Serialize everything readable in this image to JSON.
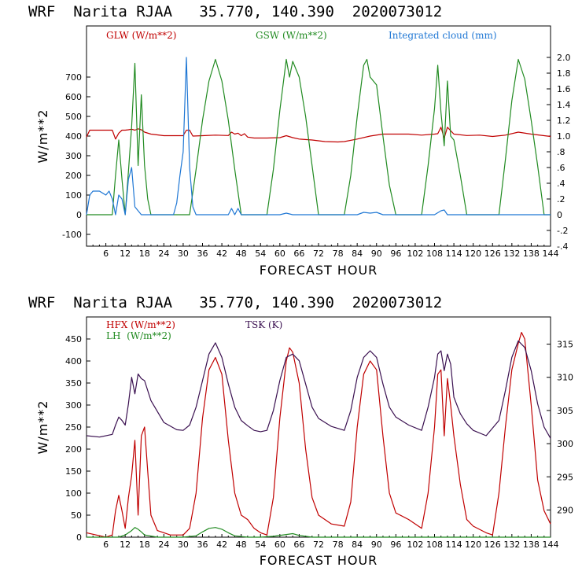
{
  "header_top": "WRF  Narita RJAA   35.770, 140.390  2020073012",
  "header_bottom": "WRF  Narita RJAA   35.770, 140.390  2020073012",
  "colors": {
    "red": "#c00000",
    "green": "#228b22",
    "blue": "#1f77d4",
    "purple": "#3a1050"
  },
  "chart_data": [
    {
      "type": "line",
      "title": "WRF  Narita RJAA   35.770, 140.390  2020073012",
      "xlabel": "FORECAST HOUR",
      "ylabel": "W/m**2",
      "ylabel_right": "",
      "xlim": [
        0,
        144
      ],
      "ylim": [
        -160,
        960
      ],
      "y2lim": [
        -0.4,
        2.4
      ],
      "x_ticks": [
        6,
        12,
        18,
        24,
        30,
        36,
        42,
        48,
        54,
        60,
        66,
        72,
        78,
        84,
        90,
        96,
        102,
        108,
        114,
        120,
        126,
        132,
        138,
        144
      ],
      "y_ticks": [
        -100,
        0,
        100,
        200,
        300,
        400,
        500,
        600,
        700
      ],
      "y2_ticks": [
        "-.4",
        "-.2",
        "0",
        ".2",
        ".4",
        ".6",
        ".8",
        "1.0",
        "1.2",
        "1.4",
        "1.6",
        "1.8",
        "2.0"
      ],
      "y2_tick_values": [
        -0.4,
        -0.2,
        0,
        0.2,
        0.4,
        0.6,
        0.8,
        1.0,
        1.2,
        1.4,
        1.6,
        1.8,
        2.0
      ],
      "legend": [
        "GLW (W/m**2)",
        "GSW (W/m**2)",
        "Integrated cloud (mm)"
      ],
      "series": [
        {
          "name": "GLW (W/m**2)",
          "axis": "left",
          "color": "#c00000",
          "x": [
            0,
            1,
            8,
            9,
            10,
            11,
            12,
            13,
            14,
            15,
            16,
            17,
            18,
            20,
            24,
            28,
            30,
            31,
            32,
            33,
            36,
            40,
            44,
            45,
            46,
            47,
            48,
            49,
            50,
            52,
            56,
            60,
            62,
            64,
            66,
            70,
            74,
            78,
            80,
            84,
            88,
            92,
            96,
            100,
            104,
            108,
            109,
            110,
            111,
            112,
            114,
            118,
            122,
            126,
            130,
            134,
            138,
            144
          ],
          "y": [
            395,
            430,
            430,
            385,
            415,
            430,
            430,
            432,
            435,
            430,
            437,
            432,
            420,
            410,
            402,
            402,
            402,
            430,
            430,
            400,
            402,
            405,
            403,
            420,
            410,
            415,
            402,
            412,
            395,
            390,
            390,
            392,
            402,
            392,
            385,
            380,
            372,
            370,
            372,
            385,
            400,
            410,
            410,
            410,
            405,
            410,
            412,
            445,
            390,
            445,
            410,
            403,
            405,
            398,
            405,
            420,
            410,
            398
          ]
        },
        {
          "name": "GSW (W/m**2)",
          "axis": "left",
          "color": "#228b22",
          "x": [
            0,
            8,
            9,
            10,
            11,
            12,
            13,
            14,
            15,
            16,
            17,
            18,
            19,
            20,
            22,
            24,
            28,
            30,
            32,
            34,
            36,
            38,
            40,
            42,
            44,
            46,
            48,
            50,
            52,
            54,
            56,
            58,
            60,
            62,
            63,
            64,
            66,
            68,
            70,
            72,
            76,
            80,
            82,
            84,
            86,
            87,
            88,
            90,
            92,
            94,
            96,
            100,
            104,
            106,
            108,
            109,
            110,
            111,
            112,
            113,
            114,
            116,
            118,
            120,
            124,
            128,
            130,
            132,
            134,
            136,
            138,
            140,
            142,
            144
          ],
          "y": [
            0,
            0,
            200,
            380,
            180,
            0,
            220,
            450,
            770,
            250,
            610,
            250,
            80,
            0,
            0,
            0,
            0,
            0,
            0,
            230,
            480,
            680,
            790,
            680,
            480,
            230,
            0,
            0,
            0,
            0,
            0,
            230,
            530,
            790,
            700,
            780,
            700,
            500,
            250,
            0,
            0,
            0,
            200,
            500,
            760,
            790,
            700,
            660,
            400,
            150,
            0,
            0,
            0,
            250,
            540,
            760,
            520,
            350,
            680,
            400,
            380,
            200,
            0,
            0,
            0,
            0,
            280,
            580,
            790,
            690,
            480,
            250,
            0,
            0
          ]
        },
        {
          "name": "Integrated cloud (mm)",
          "axis": "right",
          "color": "#1f77d4",
          "x": [
            0,
            1,
            2,
            4,
            6,
            7,
            8,
            9,
            10,
            11,
            12,
            13,
            14,
            15,
            16,
            17,
            18,
            20,
            24,
            27,
            28,
            29,
            30,
            31,
            32,
            33,
            34,
            36,
            40,
            44,
            45,
            46,
            47,
            48,
            50,
            54,
            60,
            62,
            64,
            66,
            70,
            80,
            84,
            86,
            88,
            90,
            92,
            96,
            108,
            110,
            111,
            112,
            116,
            124,
            144
          ],
          "y": [
            0.0,
            0.25,
            0.3,
            0.3,
            0.25,
            0.3,
            0.2,
            0.0,
            0.25,
            0.2,
            0.0,
            0.45,
            0.6,
            0.1,
            0.05,
            0.0,
            0.0,
            0.0,
            0.0,
            0.0,
            0.15,
            0.5,
            0.8,
            2.0,
            0.6,
            0.1,
            0.0,
            0.0,
            0.0,
            0.0,
            0.08,
            0.0,
            0.08,
            0.0,
            0.0,
            0.0,
            0.0,
            0.02,
            0.0,
            0.0,
            0.0,
            0.0,
            0.0,
            0.03,
            0.02,
            0.03,
            0.0,
            0.0,
            0.0,
            0.05,
            0.06,
            0.0,
            0.0,
            0.0,
            0.0
          ]
        }
      ]
    },
    {
      "type": "line",
      "title": "WRF  Narita RJAA   35.770, 140.390  2020073012",
      "xlabel": "FORECAST HOUR",
      "ylabel": "W/m**2",
      "xlim": [
        0,
        144
      ],
      "ylim": [
        0,
        500
      ],
      "y2lim": [
        285.9,
        319.1
      ],
      "x_ticks": [
        6,
        12,
        18,
        24,
        30,
        36,
        42,
        48,
        54,
        60,
        66,
        72,
        78,
        84,
        90,
        96,
        102,
        108,
        114,
        120,
        126,
        132,
        138,
        144
      ],
      "y_ticks": [
        0,
        50,
        100,
        150,
        200,
        250,
        300,
        350,
        400,
        450
      ],
      "y2_ticks": [
        "290",
        "295",
        "300",
        "305",
        "310",
        "315"
      ],
      "y2_tick_values": [
        290,
        295,
        300,
        305,
        310,
        315
      ],
      "legend": [
        "HFX (W/m**2)",
        "LH  (W/m**2)",
        "TSK (K)"
      ],
      "series": [
        {
          "name": "HFX (W/m**2)",
          "axis": "left",
          "color": "#c00000",
          "x": [
            0,
            6,
            8,
            9,
            10,
            11,
            12,
            13,
            14,
            15,
            16,
            17,
            18,
            19,
            20,
            22,
            26,
            30,
            32,
            34,
            36,
            38,
            40,
            42,
            44,
            46,
            48,
            50,
            52,
            54,
            56,
            58,
            60,
            62,
            63,
            64,
            66,
            68,
            70,
            72,
            76,
            80,
            82,
            84,
            86,
            88,
            90,
            92,
            94,
            96,
            100,
            104,
            106,
            108,
            109,
            110,
            111,
            112,
            113,
            114,
            116,
            118,
            120,
            124,
            126,
            128,
            130,
            132,
            134,
            135,
            136,
            138,
            140,
            142,
            144
          ],
          "y": [
            10,
            0,
            5,
            60,
            95,
            60,
            20,
            90,
            140,
            220,
            50,
            230,
            250,
            150,
            50,
            15,
            5,
            5,
            20,
            100,
            270,
            380,
            408,
            370,
            220,
            100,
            50,
            40,
            20,
            10,
            5,
            90,
            270,
            400,
            430,
            420,
            350,
            200,
            90,
            50,
            30,
            25,
            80,
            250,
            370,
            400,
            380,
            230,
            100,
            55,
            40,
            20,
            100,
            250,
            370,
            380,
            230,
            360,
            300,
            230,
            120,
            40,
            25,
            10,
            5,
            100,
            250,
            380,
            440,
            465,
            450,
            300,
            130,
            60,
            30
          ]
        },
        {
          "name": "LH  (W/m**2)",
          "axis": "left",
          "color": "#228b22",
          "x": [
            0,
            10,
            12,
            14,
            15,
            16,
            17,
            18,
            22,
            30,
            34,
            36,
            38,
            40,
            42,
            44,
            46,
            50,
            54,
            58,
            62,
            64,
            66,
            70,
            144
          ],
          "y": [
            0,
            0,
            5,
            15,
            22,
            18,
            12,
            5,
            0,
            0,
            3,
            12,
            20,
            22,
            18,
            10,
            3,
            0,
            0,
            2,
            6,
            8,
            4,
            0,
            0
          ]
        },
        {
          "name": "TSK (K)",
          "axis": "right",
          "color": "#3a1050",
          "x": [
            0,
            4,
            8,
            9,
            10,
            11,
            12,
            13,
            14,
            15,
            16,
            17,
            18,
            20,
            24,
            28,
            30,
            32,
            34,
            36,
            38,
            40,
            42,
            44,
            46,
            48,
            50,
            52,
            54,
            56,
            58,
            60,
            62,
            64,
            66,
            68,
            70,
            72,
            76,
            80,
            82,
            84,
            86,
            88,
            90,
            92,
            94,
            96,
            100,
            104,
            106,
            108,
            109,
            110,
            111,
            112,
            113,
            114,
            116,
            118,
            120,
            124,
            128,
            130,
            132,
            134,
            136,
            138,
            140,
            142,
            144
          ],
          "y": [
            301.2,
            301.0,
            301.4,
            302.8,
            304.0,
            303.5,
            302.8,
            306.0,
            310.0,
            307.5,
            310.5,
            309.8,
            309.5,
            306.5,
            303.2,
            302.1,
            302.0,
            302.8,
            305.5,
            309.5,
            313.5,
            315.2,
            313.0,
            309.0,
            305.5,
            303.5,
            302.7,
            302.0,
            301.8,
            302.0,
            305.0,
            309.5,
            313.0,
            313.5,
            312.5,
            309.0,
            305.5,
            303.8,
            302.6,
            302.0,
            305.0,
            310.0,
            313.0,
            314.0,
            313.0,
            309.0,
            305.5,
            304.0,
            302.8,
            302.0,
            305.5,
            310.0,
            313.5,
            314.0,
            311.0,
            313.5,
            312.0,
            307.0,
            304.5,
            303.0,
            302.0,
            301.2,
            303.5,
            308.0,
            313.0,
            315.5,
            314.5,
            311.0,
            306.0,
            302.5,
            300.8
          ]
        }
      ]
    }
  ]
}
